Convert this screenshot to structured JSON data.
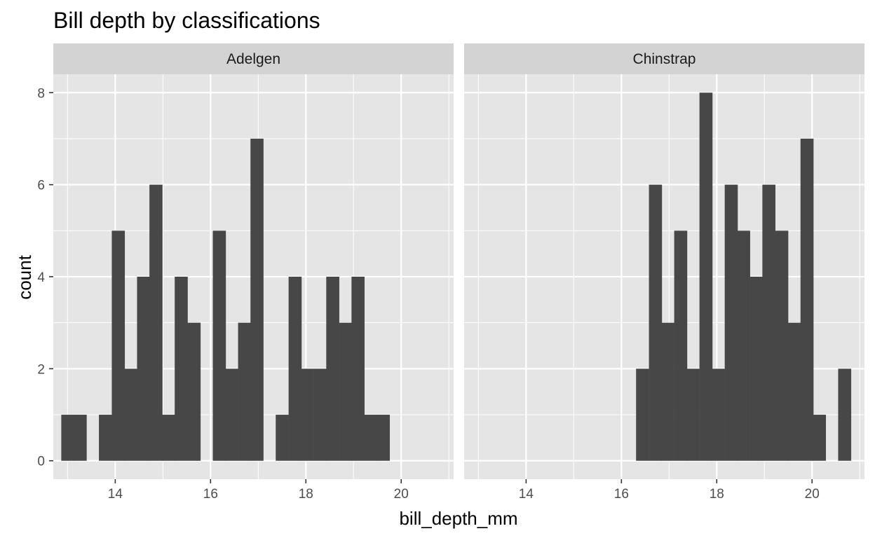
{
  "chart_data": {
    "type": "bar",
    "title": "Bill depth by classifications",
    "xlabel": "bill_depth_mm",
    "ylabel": "count",
    "xlim": [
      12.7,
      21.1
    ],
    "ylim": [
      -0.4,
      8.4
    ],
    "x_ticks": [
      14,
      16,
      18,
      20
    ],
    "y_ticks": [
      0,
      2,
      4,
      6,
      8
    ],
    "bin_width": 0.265,
    "grid": true,
    "colors": {
      "bar": "#474747",
      "panel": "#e5e5e5",
      "strip": "#d3d3d3",
      "grid": "#ffffff"
    },
    "facets": [
      {
        "name": "Adelgen",
        "bins": [
          {
            "x": 13.0,
            "count": 1
          },
          {
            "x": 13.26,
            "count": 1
          },
          {
            "x": 13.79,
            "count": 1
          },
          {
            "x": 14.06,
            "count": 5
          },
          {
            "x": 14.32,
            "count": 2
          },
          {
            "x": 14.59,
            "count": 4
          },
          {
            "x": 14.85,
            "count": 6
          },
          {
            "x": 15.12,
            "count": 1
          },
          {
            "x": 15.38,
            "count": 4
          },
          {
            "x": 15.65,
            "count": 3
          },
          {
            "x": 16.18,
            "count": 5
          },
          {
            "x": 16.44,
            "count": 2
          },
          {
            "x": 16.71,
            "count": 3
          },
          {
            "x": 16.97,
            "count": 7
          },
          {
            "x": 17.5,
            "count": 1
          },
          {
            "x": 17.77,
            "count": 4
          },
          {
            "x": 18.03,
            "count": 2
          },
          {
            "x": 18.3,
            "count": 2
          },
          {
            "x": 18.56,
            "count": 4
          },
          {
            "x": 18.83,
            "count": 3
          },
          {
            "x": 19.09,
            "count": 4
          },
          {
            "x": 19.36,
            "count": 1
          },
          {
            "x": 19.62,
            "count": 1
          }
        ]
      },
      {
        "name": "Chinstrap",
        "bins": [
          {
            "x": 16.44,
            "count": 2
          },
          {
            "x": 16.71,
            "count": 6
          },
          {
            "x": 16.97,
            "count": 3
          },
          {
            "x": 17.24,
            "count": 5
          },
          {
            "x": 17.5,
            "count": 2
          },
          {
            "x": 17.77,
            "count": 8
          },
          {
            "x": 18.03,
            "count": 2
          },
          {
            "x": 18.3,
            "count": 6
          },
          {
            "x": 18.56,
            "count": 5
          },
          {
            "x": 18.83,
            "count": 4
          },
          {
            "x": 19.09,
            "count": 6
          },
          {
            "x": 19.36,
            "count": 5
          },
          {
            "x": 19.62,
            "count": 3
          },
          {
            "x": 19.89,
            "count": 7
          },
          {
            "x": 20.15,
            "count": 1
          },
          {
            "x": 20.68,
            "count": 2
          }
        ]
      }
    ]
  }
}
